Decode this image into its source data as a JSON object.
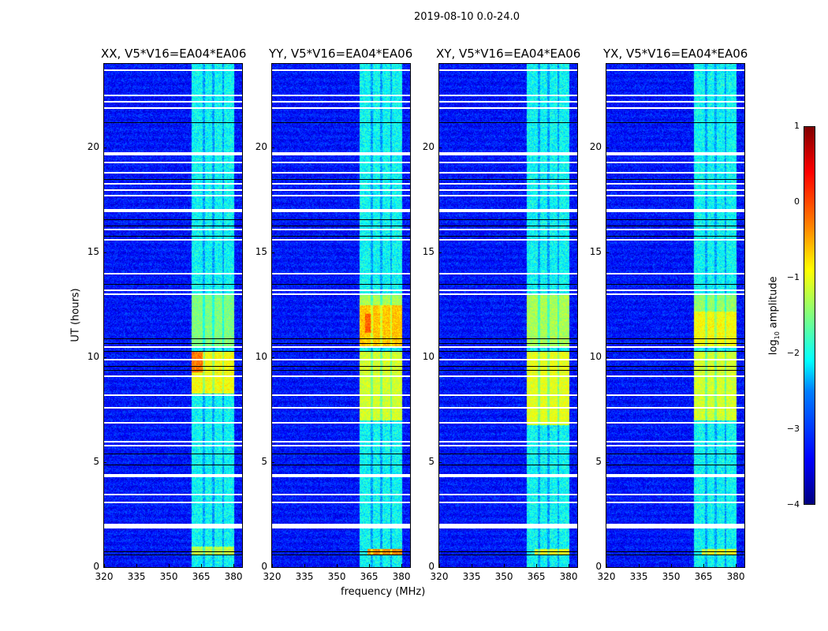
{
  "chart_data": {
    "type": "heatmap",
    "title": "2019-08-10 0.0-24.0",
    "xlabel": "frequency (MHz)",
    "ylabel": "UT (hours)",
    "xlim": [
      320,
      384
    ],
    "ylim": [
      0,
      24
    ],
    "xticks": [
      "320",
      "335",
      "350",
      "365",
      "380"
    ],
    "xtick_values": [
      320,
      335,
      350,
      365,
      380
    ],
    "yticks": [
      "0",
      "5",
      "10",
      "15",
      "20"
    ],
    "ytick_values": [
      0,
      5,
      10,
      15,
      20
    ],
    "colorbar": {
      "label": "log10 amplitude",
      "label_main": "log",
      "label_sub": "10",
      "label_rest": " amplitude",
      "range": [
        -4,
        1
      ],
      "ticks": [
        "1",
        "0",
        "−1",
        "−2",
        "−3",
        "−4"
      ],
      "tick_values": [
        1,
        0,
        -1,
        -2,
        -3,
        -4
      ],
      "colormap": "jet"
    },
    "background_level": -3.3,
    "band": {
      "f0": 360.5,
      "f1": 380,
      "level": -2.1,
      "gaps": [
        366,
        370.5,
        375
      ]
    },
    "flagged_white": [
      23.7,
      22.5,
      22.2,
      21.9,
      19.7,
      19.3,
      18.8,
      18.3,
      18.0,
      17.7,
      17.0,
      16.1,
      15.6,
      14.0,
      13.2,
      13.0,
      10.5,
      9.9,
      9.1,
      8.2,
      7.6,
      6.9,
      6.0,
      5.8,
      4.35,
      3.45,
      3.1,
      2.05,
      1.9
    ],
    "flagged_thick": [
      19.7,
      17.0,
      4.35,
      1.9
    ],
    "flagged_black": [
      21.2,
      18.5,
      16.6,
      16.3,
      15.8,
      13.5,
      10.9,
      10.7,
      10.3,
      9.6,
      9.4,
      5.4,
      4.9,
      0.75,
      0.6
    ],
    "panels": [
      {
        "title": "XX, V5*V16=EA04*EA06",
        "hot": [
          [
            0.6,
            1.0,
            360.5,
            380,
            -1.2
          ],
          [
            8.3,
            10.3,
            360.5,
            380,
            -0.9
          ],
          [
            9.3,
            10.3,
            360.5,
            366,
            -0.2
          ],
          [
            10.5,
            13,
            360.5,
            380,
            -1.5
          ]
        ]
      },
      {
        "title": "YY, V5*V16=EA04*EA06",
        "hot": [
          [
            0.6,
            0.9,
            364,
            380,
            -0.3
          ],
          [
            7,
            10.3,
            360.5,
            380,
            -1.1
          ],
          [
            10.5,
            12.5,
            360.5,
            380,
            -0.6
          ],
          [
            11.2,
            12.1,
            363,
            366,
            -0.1
          ],
          [
            12.5,
            13,
            360.5,
            380,
            -1.3
          ]
        ]
      },
      {
        "title": "XY, V5*V16=EA04*EA06",
        "hot": [
          [
            0.6,
            0.9,
            364,
            380,
            -1.0
          ],
          [
            6.8,
            10.3,
            360.5,
            380,
            -1.0
          ],
          [
            10.5,
            13,
            360.5,
            380,
            -1.3
          ]
        ]
      },
      {
        "title": "YX, V5*V16=EA04*EA06",
        "hot": [
          [
            0.6,
            0.9,
            364,
            380,
            -1.0
          ],
          [
            7,
            10.3,
            360.5,
            380,
            -1.1
          ],
          [
            10.5,
            12.2,
            360.5,
            380,
            -0.9
          ],
          [
            12.2,
            13,
            360.5,
            380,
            -1.4
          ]
        ]
      }
    ]
  }
}
